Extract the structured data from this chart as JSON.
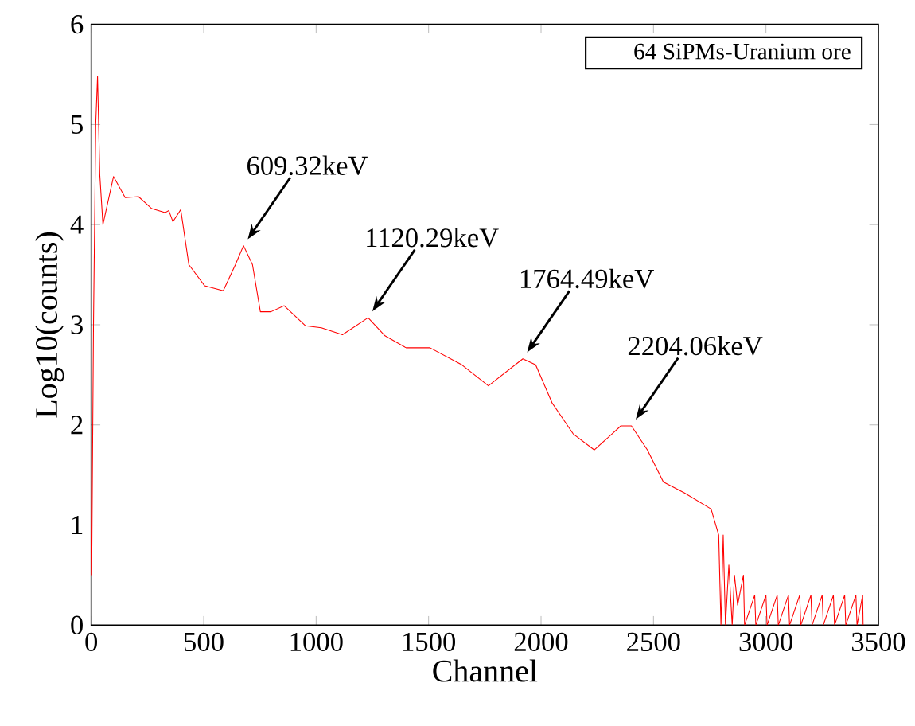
{
  "chart_data": {
    "type": "line",
    "xlabel": "Channel",
    "ylabel": "Log10(counts)",
    "xlim": [
      0,
      3500
    ],
    "ylim": [
      0,
      6
    ],
    "xticks": [
      0,
      500,
      1000,
      1500,
      2000,
      2500,
      3000,
      3500
    ],
    "yticks": [
      0,
      1,
      2,
      3,
      4,
      5,
      6
    ],
    "legend": "top right",
    "grid": false,
    "marker": "none",
    "line_style": "solid",
    "series": [
      {
        "name": "64 SiPMs-Uranium ore",
        "color": "#ff0000",
        "x": [
          2,
          10,
          20,
          28,
          38,
          52,
          99,
          151,
          210,
          269,
          328,
          345,
          363,
          398,
          434,
          504,
          587,
          641,
          677,
          717,
          752,
          799,
          858,
          952,
          1023,
          1117,
          1231,
          1306,
          1400,
          1506,
          1648,
          1766,
          1919,
          1976,
          2049,
          2143,
          2237,
          2355,
          2402,
          2473,
          2544,
          2638,
          2756,
          2790,
          2800,
          2810,
          2820,
          2835,
          2850,
          2860,
          2874,
          2900,
          2905,
          2950,
          2955,
          3000,
          3005,
          3050,
          3055,
          3100,
          3105,
          3150,
          3155,
          3200,
          3205,
          3250,
          3255,
          3300,
          3305,
          3350,
          3355,
          3400,
          3405,
          3430,
          3432
        ],
        "values": [
          0.5,
          3.0,
          5.0,
          5.48,
          4.5,
          4.0,
          4.48,
          4.27,
          4.28,
          4.16,
          4.12,
          4.14,
          4.03,
          4.15,
          3.6,
          3.39,
          3.34,
          3.6,
          3.79,
          3.6,
          3.13,
          3.13,
          3.19,
          2.99,
          2.97,
          2.9,
          3.07,
          2.89,
          2.77,
          2.77,
          2.6,
          2.39,
          2.66,
          2.6,
          2.22,
          1.91,
          1.75,
          1.99,
          1.99,
          1.75,
          1.43,
          1.32,
          1.16,
          0.9,
          0,
          0.9,
          0,
          0.6,
          0,
          0.5,
          0.2,
          0.5,
          0,
          0.3,
          0,
          0.3,
          0,
          0.3,
          0,
          0.3,
          0,
          0.3,
          0,
          0.3,
          0,
          0.3,
          0,
          0.3,
          0,
          0.3,
          0,
          0.3,
          0,
          0.3,
          0
        ]
      }
    ],
    "annotations": [
      {
        "text": "609.32keV",
        "x": 677,
        "y": 3.79
      },
      {
        "text": "1120.29keV",
        "x": 1231,
        "y": 3.07
      },
      {
        "text": "1764.49keV",
        "x": 1919,
        "y": 2.66
      },
      {
        "text": "2204.06keV",
        "x": 2402,
        "y": 1.99
      }
    ]
  }
}
